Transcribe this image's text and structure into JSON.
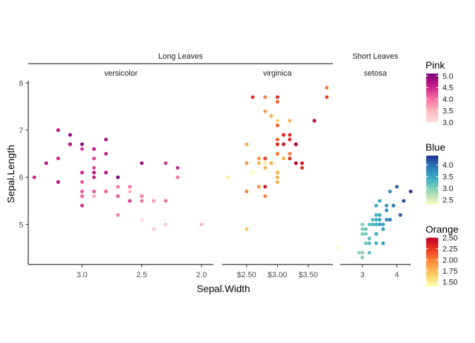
{
  "chart_data": {
    "type": "scatter",
    "xlabel": "Sepal.Width",
    "ylabel": "Sepal.Length",
    "ylim": [
      4.15,
      8.05
    ],
    "y_ticks": [
      5,
      6,
      7,
      8
    ],
    "y_tick_labels": [
      "5",
      "6",
      "7",
      "8"
    ],
    "group_strips": [
      {
        "label": "Long Leaves",
        "panels": [
          "versicolor",
          "virginica"
        ]
      },
      {
        "label": "Short Leaves",
        "panels": [
          "setosa"
        ]
      }
    ],
    "panels": [
      {
        "name": "versicolor",
        "x_reversed": true,
        "xlim": [
          3.45,
          1.9
        ],
        "x_ticks": [
          3.0,
          2.5,
          2.0
        ],
        "x_tick_labels": [
          "3.0",
          "2.5",
          "2.0"
        ],
        "color_scale": "Pink",
        "points": [
          {
            "x": 3.2,
            "y": 7.0,
            "c": 4.7
          },
          {
            "x": 3.2,
            "y": 6.4,
            "c": 4.5
          },
          {
            "x": 3.1,
            "y": 6.9,
            "c": 4.9
          },
          {
            "x": 2.3,
            "y": 5.5,
            "c": 4.0
          },
          {
            "x": 2.8,
            "y": 6.5,
            "c": 4.6
          },
          {
            "x": 2.8,
            "y": 5.7,
            "c": 4.5
          },
          {
            "x": 3.3,
            "y": 6.3,
            "c": 4.7
          },
          {
            "x": 2.4,
            "y": 4.9,
            "c": 3.3
          },
          {
            "x": 2.9,
            "y": 6.6,
            "c": 4.6
          },
          {
            "x": 2.7,
            "y": 5.2,
            "c": 3.9
          },
          {
            "x": 2.0,
            "y": 5.0,
            "c": 3.5
          },
          {
            "x": 3.0,
            "y": 5.9,
            "c": 4.2
          },
          {
            "x": 2.2,
            "y": 6.0,
            "c": 4.0
          },
          {
            "x": 2.9,
            "y": 6.1,
            "c": 4.7
          },
          {
            "x": 2.9,
            "y": 5.6,
            "c": 3.6
          },
          {
            "x": 3.1,
            "y": 6.7,
            "c": 4.4
          },
          {
            "x": 3.0,
            "y": 5.6,
            "c": 4.5
          },
          {
            "x": 2.7,
            "y": 5.8,
            "c": 4.1
          },
          {
            "x": 2.2,
            "y": 6.2,
            "c": 4.5
          },
          {
            "x": 2.5,
            "y": 5.6,
            "c": 3.9
          },
          {
            "x": 3.2,
            "y": 5.9,
            "c": 4.8
          },
          {
            "x": 2.8,
            "y": 6.1,
            "c": 4.0
          },
          {
            "x": 2.5,
            "y": 6.3,
            "c": 4.9
          },
          {
            "x": 2.8,
            "y": 6.1,
            "c": 4.7
          },
          {
            "x": 2.9,
            "y": 6.4,
            "c": 4.3
          },
          {
            "x": 3.0,
            "y": 6.6,
            "c": 4.4
          },
          {
            "x": 2.8,
            "y": 6.8,
            "c": 4.8
          },
          {
            "x": 3.0,
            "y": 6.7,
            "c": 5.0
          },
          {
            "x": 2.9,
            "y": 6.0,
            "c": 4.5
          },
          {
            "x": 2.6,
            "y": 5.7,
            "c": 3.5
          },
          {
            "x": 2.4,
            "y": 5.5,
            "c": 3.8
          },
          {
            "x": 2.4,
            "y": 5.5,
            "c": 3.7
          },
          {
            "x": 2.7,
            "y": 5.8,
            "c": 3.9
          },
          {
            "x": 2.7,
            "y": 6.0,
            "c": 5.1
          },
          {
            "x": 3.0,
            "y": 5.4,
            "c": 4.5
          },
          {
            "x": 3.4,
            "y": 6.0,
            "c": 4.5
          },
          {
            "x": 3.1,
            "y": 6.7,
            "c": 4.7
          },
          {
            "x": 2.3,
            "y": 6.3,
            "c": 4.4
          },
          {
            "x": 3.0,
            "y": 5.6,
            "c": 4.1
          },
          {
            "x": 2.5,
            "y": 5.5,
            "c": 4.0
          },
          {
            "x": 2.6,
            "y": 5.5,
            "c": 4.4
          },
          {
            "x": 3.0,
            "y": 6.1,
            "c": 4.6
          },
          {
            "x": 2.6,
            "y": 5.8,
            "c": 4.0
          },
          {
            "x": 2.3,
            "y": 5.0,
            "c": 3.3
          },
          {
            "x": 2.7,
            "y": 5.6,
            "c": 4.2
          },
          {
            "x": 3.0,
            "y": 5.7,
            "c": 4.2
          },
          {
            "x": 2.9,
            "y": 5.7,
            "c": 4.2
          },
          {
            "x": 2.9,
            "y": 6.2,
            "c": 4.3
          },
          {
            "x": 2.5,
            "y": 5.1,
            "c": 3.0
          },
          {
            "x": 2.8,
            "y": 5.7,
            "c": 4.1
          }
        ]
      },
      {
        "name": "virginica",
        "x_reversed": false,
        "xlim": [
          2.1,
          3.9
        ],
        "x_ticks": [
          2.5,
          3.0,
          3.5
        ],
        "x_tick_labels": [
          "$2.50",
          "$3.00",
          "$3.50"
        ],
        "color_scale": "Orange",
        "points": [
          {
            "x": 3.3,
            "y": 6.3,
            "c": 2.5
          },
          {
            "x": 2.7,
            "y": 5.8,
            "c": 1.9
          },
          {
            "x": 3.0,
            "y": 7.1,
            "c": 2.1
          },
          {
            "x": 2.9,
            "y": 6.3,
            "c": 1.8
          },
          {
            "x": 3.0,
            "y": 6.5,
            "c": 2.2
          },
          {
            "x": 3.0,
            "y": 7.6,
            "c": 2.1
          },
          {
            "x": 2.5,
            "y": 4.9,
            "c": 1.7
          },
          {
            "x": 2.9,
            "y": 7.3,
            "c": 1.8
          },
          {
            "x": 2.5,
            "y": 6.7,
            "c": 1.8
          },
          {
            "x": 3.6,
            "y": 7.2,
            "c": 2.5
          },
          {
            "x": 3.2,
            "y": 6.5,
            "c": 2.0
          },
          {
            "x": 2.7,
            "y": 6.4,
            "c": 1.9
          },
          {
            "x": 3.0,
            "y": 6.8,
            "c": 2.1
          },
          {
            "x": 2.5,
            "y": 5.7,
            "c": 2.0
          },
          {
            "x": 2.8,
            "y": 5.8,
            "c": 2.4
          },
          {
            "x": 3.2,
            "y": 6.4,
            "c": 2.3
          },
          {
            "x": 3.0,
            "y": 6.5,
            "c": 1.8
          },
          {
            "x": 3.8,
            "y": 7.7,
            "c": 2.2
          },
          {
            "x": 2.6,
            "y": 7.7,
            "c": 2.3
          },
          {
            "x": 2.2,
            "y": 6.0,
            "c": 1.5
          },
          {
            "x": 3.2,
            "y": 6.9,
            "c": 2.3
          },
          {
            "x": 2.8,
            "y": 5.6,
            "c": 2.0
          },
          {
            "x": 2.8,
            "y": 7.7,
            "c": 2.0
          },
          {
            "x": 2.7,
            "y": 6.3,
            "c": 1.8
          },
          {
            "x": 3.3,
            "y": 6.7,
            "c": 2.1
          },
          {
            "x": 3.2,
            "y": 7.2,
            "c": 1.8
          },
          {
            "x": 2.8,
            "y": 6.2,
            "c": 1.8
          },
          {
            "x": 3.0,
            "y": 6.1,
            "c": 1.8
          },
          {
            "x": 2.8,
            "y": 6.4,
            "c": 2.1
          },
          {
            "x": 3.0,
            "y": 7.2,
            "c": 1.6
          },
          {
            "x": 2.8,
            "y": 7.4,
            "c": 1.9
          },
          {
            "x": 3.8,
            "y": 7.9,
            "c": 2.0
          },
          {
            "x": 2.8,
            "y": 6.4,
            "c": 2.2
          },
          {
            "x": 2.8,
            "y": 6.3,
            "c": 1.5
          },
          {
            "x": 2.6,
            "y": 6.1,
            "c": 1.4
          },
          {
            "x": 3.0,
            "y": 7.7,
            "c": 2.3
          },
          {
            "x": 3.4,
            "y": 6.3,
            "c": 2.4
          },
          {
            "x": 3.1,
            "y": 6.4,
            "c": 1.8
          },
          {
            "x": 3.0,
            "y": 6.0,
            "c": 1.8
          },
          {
            "x": 3.1,
            "y": 6.9,
            "c": 2.1
          },
          {
            "x": 3.1,
            "y": 6.7,
            "c": 2.4
          },
          {
            "x": 3.1,
            "y": 6.9,
            "c": 2.3
          },
          {
            "x": 2.7,
            "y": 5.8,
            "c": 1.9
          },
          {
            "x": 3.2,
            "y": 6.8,
            "c": 2.3
          },
          {
            "x": 3.3,
            "y": 6.7,
            "c": 2.5
          },
          {
            "x": 3.0,
            "y": 6.7,
            "c": 2.3
          },
          {
            "x": 2.5,
            "y": 6.3,
            "c": 1.9
          },
          {
            "x": 3.0,
            "y": 6.5,
            "c": 2.0
          },
          {
            "x": 3.4,
            "y": 6.2,
            "c": 2.3
          },
          {
            "x": 3.0,
            "y": 5.9,
            "c": 1.8
          }
        ]
      },
      {
        "name": "setosa",
        "x_reversed": false,
        "xlim": [
          2.35,
          4.4
        ],
        "x_ticks": [
          3,
          4
        ],
        "x_tick_labels": [
          "3",
          "4"
        ],
        "color_scale": "Blue",
        "points": [
          {
            "x": 3.5,
            "y": 5.1,
            "c": 3.5
          },
          {
            "x": 3.0,
            "y": 4.9,
            "c": 3.0
          },
          {
            "x": 3.2,
            "y": 4.7,
            "c": 3.2
          },
          {
            "x": 3.1,
            "y": 4.6,
            "c": 3.1
          },
          {
            "x": 3.6,
            "y": 5.0,
            "c": 3.6
          },
          {
            "x": 3.9,
            "y": 5.4,
            "c": 3.9
          },
          {
            "x": 3.4,
            "y": 4.6,
            "c": 3.4
          },
          {
            "x": 3.4,
            "y": 5.0,
            "c": 3.4
          },
          {
            "x": 2.9,
            "y": 4.4,
            "c": 2.9
          },
          {
            "x": 3.1,
            "y": 4.9,
            "c": 3.1
          },
          {
            "x": 3.7,
            "y": 5.4,
            "c": 3.7
          },
          {
            "x": 3.4,
            "y": 4.8,
            "c": 3.4
          },
          {
            "x": 3.0,
            "y": 4.8,
            "c": 3.0
          },
          {
            "x": 3.0,
            "y": 4.3,
            "c": 3.0
          },
          {
            "x": 4.0,
            "y": 5.8,
            "c": 4.0
          },
          {
            "x": 4.4,
            "y": 5.7,
            "c": 4.4
          },
          {
            "x": 3.9,
            "y": 5.4,
            "c": 3.9
          },
          {
            "x": 3.5,
            "y": 5.1,
            "c": 3.5
          },
          {
            "x": 3.8,
            "y": 5.7,
            "c": 3.8
          },
          {
            "x": 3.8,
            "y": 5.1,
            "c": 3.8
          },
          {
            "x": 3.4,
            "y": 5.4,
            "c": 3.4
          },
          {
            "x": 3.7,
            "y": 5.1,
            "c": 3.7
          },
          {
            "x": 3.6,
            "y": 4.6,
            "c": 3.6
          },
          {
            "x": 3.3,
            "y": 5.1,
            "c": 3.3
          },
          {
            "x": 3.4,
            "y": 4.8,
            "c": 3.4
          },
          {
            "x": 3.0,
            "y": 5.0,
            "c": 3.0
          },
          {
            "x": 3.4,
            "y": 5.0,
            "c": 3.4
          },
          {
            "x": 3.5,
            "y": 5.2,
            "c": 3.5
          },
          {
            "x": 3.4,
            "y": 5.2,
            "c": 3.4
          },
          {
            "x": 3.2,
            "y": 4.7,
            "c": 3.2
          },
          {
            "x": 3.1,
            "y": 4.8,
            "c": 3.1
          },
          {
            "x": 3.4,
            "y": 5.4,
            "c": 3.4
          },
          {
            "x": 4.1,
            "y": 5.2,
            "c": 4.1
          },
          {
            "x": 4.2,
            "y": 5.5,
            "c": 4.2
          },
          {
            "x": 3.1,
            "y": 4.9,
            "c": 3.1
          },
          {
            "x": 3.2,
            "y": 5.0,
            "c": 3.2
          },
          {
            "x": 3.5,
            "y": 5.5,
            "c": 3.5
          },
          {
            "x": 3.6,
            "y": 4.9,
            "c": 3.6
          },
          {
            "x": 3.0,
            "y": 4.4,
            "c": 3.0
          },
          {
            "x": 3.4,
            "y": 5.1,
            "c": 3.4
          },
          {
            "x": 3.5,
            "y": 5.0,
            "c": 3.5
          },
          {
            "x": 2.3,
            "y": 4.5,
            "c": 2.3
          },
          {
            "x": 3.2,
            "y": 4.4,
            "c": 3.2
          },
          {
            "x": 3.5,
            "y": 5.0,
            "c": 3.5
          },
          {
            "x": 3.8,
            "y": 5.1,
            "c": 3.8
          },
          {
            "x": 3.0,
            "y": 4.8,
            "c": 3.0
          },
          {
            "x": 3.8,
            "y": 5.1,
            "c": 3.8
          },
          {
            "x": 3.2,
            "y": 4.6,
            "c": 3.2
          },
          {
            "x": 3.7,
            "y": 5.3,
            "c": 3.7
          },
          {
            "x": 3.3,
            "y": 5.0,
            "c": 3.3
          }
        ]
      }
    ],
    "legends": [
      {
        "title": "Pink",
        "min": 3.0,
        "max": 5.1,
        "ticks": [
          5.0,
          4.5,
          4.0,
          3.5,
          3.0
        ],
        "tick_labels": [
          "5.0",
          "4.5",
          "4.0",
          "3.5",
          "3.0"
        ],
        "colors": [
          "#fde0dd",
          "#fbb4b9",
          "#f768a1",
          "#c51b8a",
          "#7a0177"
        ]
      },
      {
        "title": "Blue",
        "min": 2.3,
        "max": 4.4,
        "ticks": [
          4.0,
          3.5,
          3.0,
          2.5
        ],
        "tick_labels": [
          "4.0",
          "3.5",
          "3.0",
          "2.5"
        ],
        "colors": [
          "#f7fcb9",
          "#a1dab4",
          "#41b6c4",
          "#2c7fb8",
          "#253494"
        ]
      },
      {
        "title": "Orange",
        "min": 1.4,
        "max": 2.5,
        "ticks": [
          2.5,
          2.25,
          2.0,
          1.75,
          1.5
        ],
        "tick_labels": [
          "2.50",
          "2.25",
          "2.00",
          "1.75",
          "1.50"
        ],
        "colors": [
          "#ffffb2",
          "#fecc5c",
          "#fd8d3c",
          "#f03b20",
          "#bd0026"
        ]
      }
    ],
    "grid": false,
    "legend_position": "right"
  }
}
